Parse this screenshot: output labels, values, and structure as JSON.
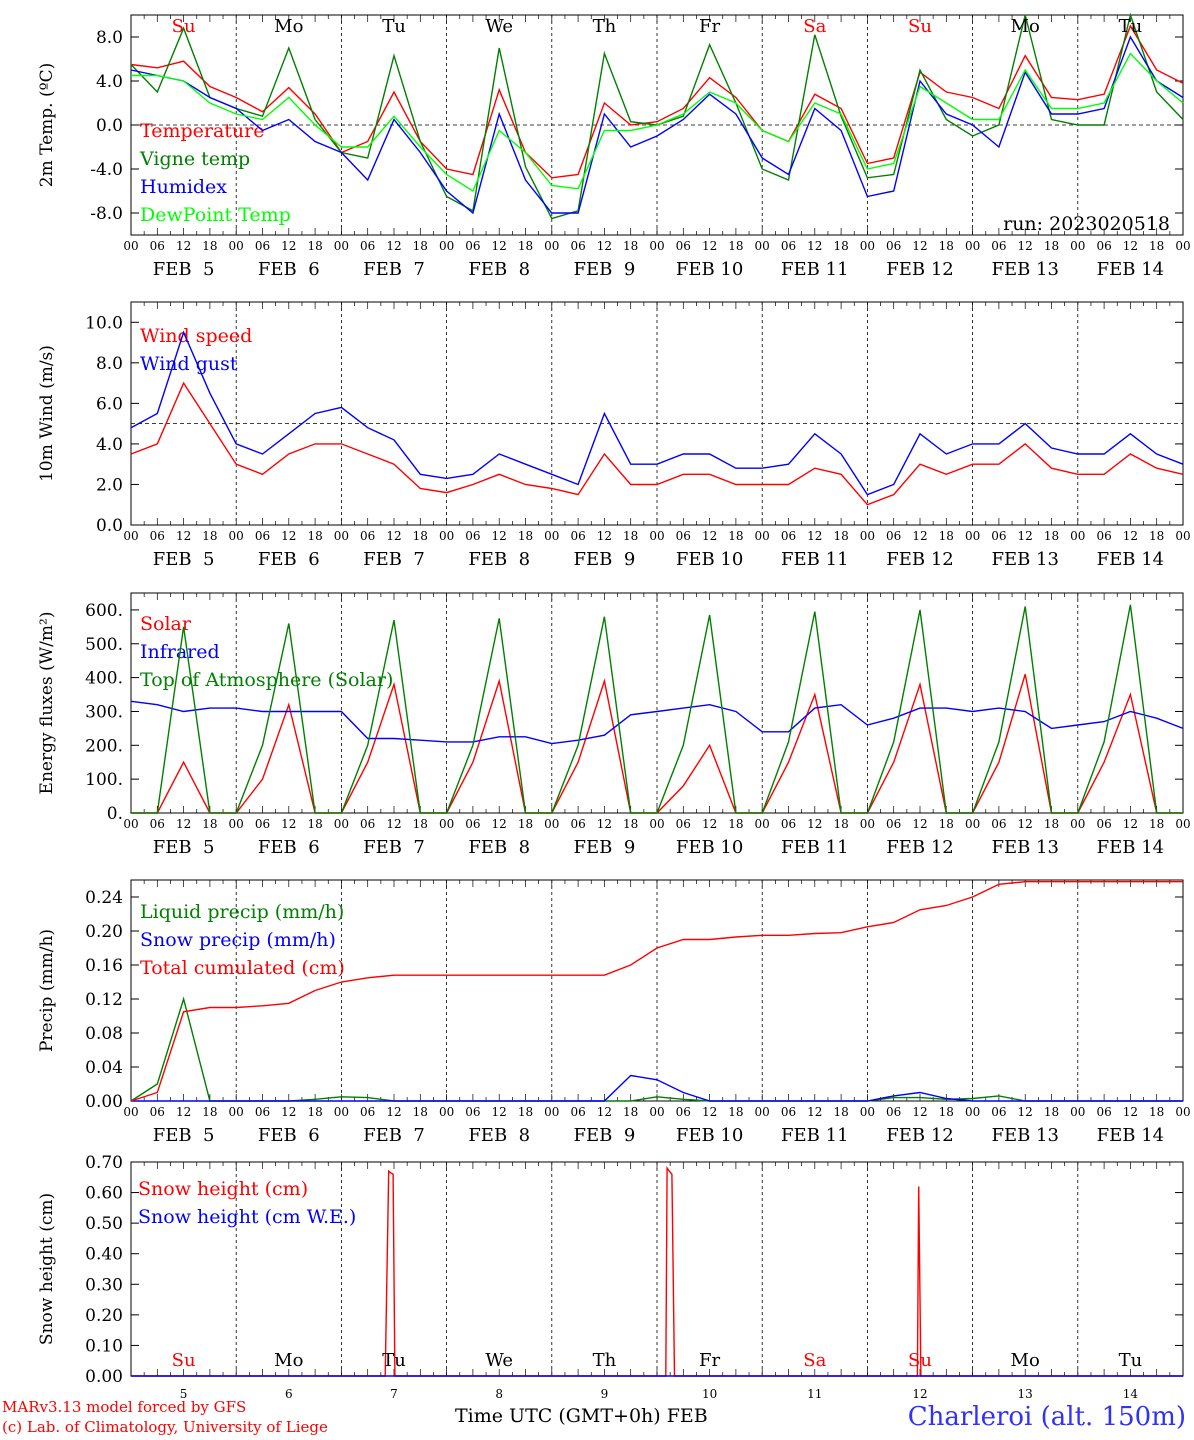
{
  "footer": {
    "model": "MARv3.13 model forced by GFS",
    "credit": "(c) Lab. of Climatology, University of Liege",
    "xaxis_title": "Time UTC (GMT+0h) FEB",
    "station": "Charleroi (alt. 150m)"
  },
  "run_label": "run: 2023020518",
  "days": {
    "weekdays": [
      "Su",
      "Mo",
      "Tu",
      "We",
      "Th",
      "Fr",
      "Sa",
      "Su",
      "Mo",
      "Tu"
    ],
    "weekend_color": "#ff0000",
    "weekday_color": "#000000",
    "dates": [
      "FEB  5",
      "FEB  6",
      "FEB  7",
      "FEB  8",
      "FEB  9",
      "FEB 10",
      "FEB 11",
      "FEB 12",
      "FEB 13",
      "FEB 14"
    ],
    "bottom_numbers": [
      "5",
      "6",
      "7",
      "8",
      "9",
      "10",
      "11",
      "12",
      "13",
      "14"
    ],
    "hour_ticks": [
      "00",
      "06",
      "12",
      "18"
    ]
  },
  "chart_data": [
    {
      "type": "line",
      "ylabel": "2m Temp. (ºC)",
      "ylim": [
        -10,
        10
      ],
      "yticks": [
        "8.0",
        "4.0",
        "0.0",
        "-4.0",
        "-8.0"
      ],
      "ytick_values": [
        8,
        4,
        0,
        -4,
        -8
      ],
      "ref_line": 0,
      "x_unit": "hours since FEB 5 00 UTC",
      "x": [
        0,
        6,
        12,
        18,
        24,
        30,
        36,
        42,
        48,
        54,
        60,
        66,
        72,
        78,
        84,
        90,
        96,
        102,
        108,
        114,
        120,
        126,
        132,
        138,
        144,
        150,
        156,
        162,
        168,
        174,
        180,
        186,
        192,
        198,
        204,
        210,
        216,
        222,
        228,
        234,
        240
      ],
      "series": [
        {
          "name": "Temperature",
          "color": "#ff0000",
          "values": [
            5.5,
            5.2,
            5.8,
            3.5,
            2.5,
            1.2,
            3.4,
            1.0,
            -2.5,
            -1.5,
            3.0,
            -1.5,
            -4.0,
            -4.5,
            3.2,
            -2.5,
            -4.8,
            -4.5,
            2.0,
            0.0,
            0.3,
            1.5,
            4.3,
            2.5,
            -0.5,
            -1.5,
            2.8,
            1.5,
            -3.5,
            -3.0,
            4.8,
            3.0,
            2.5,
            1.5,
            6.3,
            2.5,
            2.3,
            2.8,
            9.0,
            5.0,
            3.8
          ]
        },
        {
          "name": "Vigne temp",
          "color": "#008000",
          "values": [
            5.5,
            3.0,
            8.8,
            2.5,
            1.5,
            0.8,
            7.0,
            0.5,
            -2.5,
            -3.0,
            6.3,
            -1.5,
            -6.5,
            -7.8,
            7.0,
            -3.8,
            -8.5,
            -7.8,
            6.5,
            0.3,
            0.0,
            0.8,
            7.3,
            2.0,
            -4.0,
            -5.0,
            8.2,
            0.8,
            -4.8,
            -4.5,
            5.0,
            0.5,
            -1.0,
            0.0,
            10.0,
            0.5,
            0.0,
            0.0,
            10.0,
            3.0,
            0.5
          ]
        },
        {
          "name": "Humidex",
          "color": "#0000ff",
          "values": [
            5.0,
            4.5,
            4.0,
            2.5,
            1.5,
            -0.5,
            0.5,
            -1.5,
            -2.5,
            -5.0,
            0.5,
            -2.5,
            -6.0,
            -8.0,
            1.0,
            -5.0,
            -8.0,
            -8.0,
            1.0,
            -2.0,
            -1.0,
            0.5,
            2.8,
            1.0,
            -3.0,
            -4.5,
            1.5,
            -0.5,
            -6.5,
            -6.0,
            4.0,
            1.0,
            0.0,
            -2.0,
            4.8,
            1.0,
            1.0,
            1.5,
            8.0,
            4.0,
            2.5
          ]
        },
        {
          "name": "DewPoint Temp",
          "color": "#00ff00",
          "values": [
            4.5,
            4.5,
            4.0,
            2.0,
            1.0,
            0.5,
            2.5,
            0.0,
            -2.0,
            -2.0,
            0.8,
            -2.0,
            -4.5,
            -6.0,
            -0.5,
            -2.5,
            -5.5,
            -5.8,
            -0.5,
            -0.5,
            0.0,
            1.0,
            3.0,
            2.0,
            -0.5,
            -1.5,
            2.0,
            1.0,
            -4.0,
            -3.5,
            3.5,
            2.0,
            0.5,
            0.5,
            5.0,
            1.5,
            1.5,
            2.0,
            6.5,
            4.0,
            2.0
          ]
        }
      ]
    },
    {
      "type": "line",
      "ylabel": "10m Wind (m/s)",
      "ylim": [
        0,
        11
      ],
      "yticks": [
        "10.0",
        "8.0",
        "6.0",
        "4.0",
        "2.0",
        "0.0"
      ],
      "ytick_values": [
        10,
        8,
        6,
        4,
        2,
        0
      ],
      "ref_line": 5,
      "x_unit": "hours since FEB 5 00 UTC",
      "x": [
        0,
        6,
        12,
        18,
        24,
        30,
        36,
        42,
        48,
        54,
        60,
        66,
        72,
        78,
        84,
        90,
        96,
        102,
        108,
        114,
        120,
        126,
        132,
        138,
        144,
        150,
        156,
        162,
        168,
        174,
        180,
        186,
        192,
        198,
        204,
        210,
        216,
        222,
        228,
        234,
        240
      ],
      "series": [
        {
          "name": "Wind speed",
          "color": "#ff0000",
          "values": [
            3.5,
            4.0,
            7.0,
            5.0,
            3.0,
            2.5,
            3.5,
            4.0,
            4.0,
            3.5,
            3.0,
            1.8,
            1.6,
            2.0,
            2.5,
            2.0,
            1.8,
            1.5,
            3.5,
            2.0,
            2.0,
            2.5,
            2.5,
            2.0,
            2.0,
            2.0,
            2.8,
            2.5,
            1.0,
            1.5,
            3.0,
            2.5,
            3.0,
            3.0,
            4.0,
            2.8,
            2.5,
            2.5,
            3.5,
            2.8,
            2.5
          ]
        },
        {
          "name": "Wind gust",
          "color": "#0000ff",
          "values": [
            4.8,
            5.5,
            9.5,
            6.5,
            4.0,
            3.5,
            4.5,
            5.5,
            5.8,
            4.8,
            4.2,
            2.5,
            2.3,
            2.5,
            3.5,
            3.0,
            2.5,
            2.0,
            5.5,
            3.0,
            3.0,
            3.5,
            3.5,
            2.8,
            2.8,
            3.0,
            4.5,
            3.5,
            1.5,
            2.0,
            4.5,
            3.5,
            4.0,
            4.0,
            5.0,
            3.8,
            3.5,
            3.5,
            4.5,
            3.5,
            3.0
          ]
        }
      ]
    },
    {
      "type": "line",
      "ylabel": "Energy fluxes (W/m²)",
      "ylim": [
        0,
        650
      ],
      "yticks": [
        "600.",
        "500.",
        "400.",
        "300.",
        "200.",
        "100.",
        "0."
      ],
      "ytick_values": [
        600,
        500,
        400,
        300,
        200,
        100,
        0
      ],
      "x_unit": "hours since FEB 5 00 UTC",
      "x": [
        0,
        6,
        12,
        18,
        24,
        30,
        36,
        42,
        48,
        54,
        60,
        66,
        72,
        78,
        84,
        90,
        96,
        102,
        108,
        114,
        120,
        126,
        132,
        138,
        144,
        150,
        156,
        162,
        168,
        174,
        180,
        186,
        192,
        198,
        204,
        210,
        216,
        222,
        228,
        234,
        240
      ],
      "series": [
        {
          "name": "Solar",
          "color": "#ff0000",
          "values": [
            0,
            0,
            150,
            0,
            0,
            100,
            320,
            0,
            0,
            150,
            380,
            0,
            0,
            150,
            390,
            0,
            0,
            150,
            390,
            0,
            0,
            80,
            200,
            0,
            0,
            150,
            350,
            0,
            0,
            150,
            380,
            0,
            0,
            150,
            410,
            0,
            0,
            150,
            350,
            0,
            0
          ]
        },
        {
          "name": "Infrared",
          "color": "#0000ff",
          "values": [
            330,
            320,
            300,
            310,
            310,
            300,
            300,
            300,
            300,
            220,
            220,
            215,
            210,
            210,
            225,
            225,
            205,
            215,
            230,
            290,
            300,
            310,
            320,
            300,
            240,
            240,
            310,
            320,
            260,
            280,
            310,
            310,
            300,
            310,
            300,
            250,
            260,
            270,
            300,
            280,
            250
          ]
        },
        {
          "name": "Top of Atmosphere (Solar)",
          "color": "#008000",
          "values": [
            0,
            0,
            550,
            0,
            0,
            200,
            560,
            0,
            0,
            200,
            570,
            0,
            0,
            200,
            575,
            0,
            0,
            200,
            580,
            0,
            0,
            200,
            585,
            0,
            0,
            210,
            595,
            0,
            0,
            210,
            600,
            0,
            0,
            210,
            610,
            0,
            0,
            210,
            615,
            0,
            0
          ]
        }
      ]
    },
    {
      "type": "line",
      "ylabel": "Precip (mm/h)",
      "ylim": [
        0,
        0.26
      ],
      "yticks": [
        "0.24",
        "0.20",
        "0.16",
        "0.12",
        "0.08",
        "0.04",
        "0.00"
      ],
      "ytick_values": [
        0.24,
        0.2,
        0.16,
        0.12,
        0.08,
        0.04,
        0.0
      ],
      "x_unit": "hours since FEB 5 00 UTC",
      "x": [
        0,
        6,
        12,
        18,
        24,
        30,
        36,
        42,
        48,
        54,
        60,
        66,
        72,
        78,
        84,
        90,
        96,
        102,
        108,
        114,
        120,
        126,
        132,
        138,
        144,
        150,
        156,
        162,
        168,
        174,
        180,
        186,
        192,
        198,
        204,
        210,
        216,
        222,
        228,
        234,
        240
      ],
      "series": [
        {
          "name": "Liquid precip (mm/h)",
          "color": "#008000",
          "values": [
            0.0,
            0.02,
            0.12,
            0.0,
            0.0,
            0.0,
            0.0,
            0.002,
            0.005,
            0.004,
            0.0,
            0.0,
            0.0,
            0.0,
            0.0,
            0.0,
            0.0,
            0.0,
            0.0,
            0.0,
            0.005,
            0.002,
            0.0,
            0.0,
            0.0,
            0.0,
            0.0,
            0.0,
            0.0,
            0.004,
            0.004,
            0.002,
            0.003,
            0.006,
            0.0,
            0.0,
            0.0,
            0.0,
            0.0,
            0.0,
            0.0
          ]
        },
        {
          "name": "Snow precip (mm/h)",
          "color": "#0000ff",
          "values": [
            0.0,
            0.0,
            0.0,
            0.0,
            0.0,
            0.0,
            0.0,
            0.0,
            0.0,
            0.0,
            0.0,
            0.0,
            0.0,
            0.0,
            0.0,
            0.0,
            0.0,
            0.0,
            0.0,
            0.03,
            0.025,
            0.01,
            0.0,
            0.0,
            0.0,
            0.0,
            0.0,
            0.0,
            0.0,
            0.006,
            0.01,
            0.003,
            0.0,
            0.0,
            0.0,
            0.0,
            0.0,
            0.0,
            0.0,
            0.0,
            0.0
          ]
        },
        {
          "name": "Total cumulated (cm)",
          "color": "#ff0000",
          "values": [
            0.0,
            0.01,
            0.105,
            0.11,
            0.11,
            0.112,
            0.115,
            0.13,
            0.14,
            0.145,
            0.148,
            0.148,
            0.148,
            0.148,
            0.148,
            0.148,
            0.148,
            0.148,
            0.148,
            0.16,
            0.18,
            0.19,
            0.19,
            0.193,
            0.195,
            0.195,
            0.197,
            0.198,
            0.205,
            0.21,
            0.225,
            0.23,
            0.24,
            0.255,
            0.258,
            0.258,
            0.258,
            0.258,
            0.258,
            0.258,
            0.258
          ]
        }
      ]
    },
    {
      "type": "line",
      "ylabel": "Snow height (cm)",
      "ylim": [
        0,
        0.7
      ],
      "yticks": [
        "0.70",
        "0.60",
        "0.50",
        "0.40",
        "0.30",
        "0.20",
        "0.10",
        "0.00"
      ],
      "ytick_values": [
        0.7,
        0.6,
        0.5,
        0.4,
        0.3,
        0.2,
        0.1,
        0.0
      ],
      "x_unit": "hours since FEB 5 00 UTC",
      "x": [
        0,
        58,
        58.8,
        59.2,
        59.8,
        60.2,
        120,
        122,
        122.3,
        122.8,
        123.4,
        124,
        177,
        179.4,
        179.7,
        180.2,
        240
      ],
      "series": [
        {
          "name": "Snow height (cm)",
          "color": "#ff0000",
          "values": [
            0,
            0,
            0.67,
            0.665,
            0.66,
            0,
            0,
            0,
            0.68,
            0.67,
            0.66,
            0,
            0,
            0,
            0.62,
            0,
            0
          ]
        },
        {
          "name": "Snow height (cm W.E.)",
          "color": "#0000ff",
          "values": [
            0,
            0,
            0,
            0,
            0,
            0,
            0,
            0,
            0,
            0,
            0,
            0,
            0,
            0,
            0,
            0,
            0
          ]
        }
      ]
    }
  ]
}
